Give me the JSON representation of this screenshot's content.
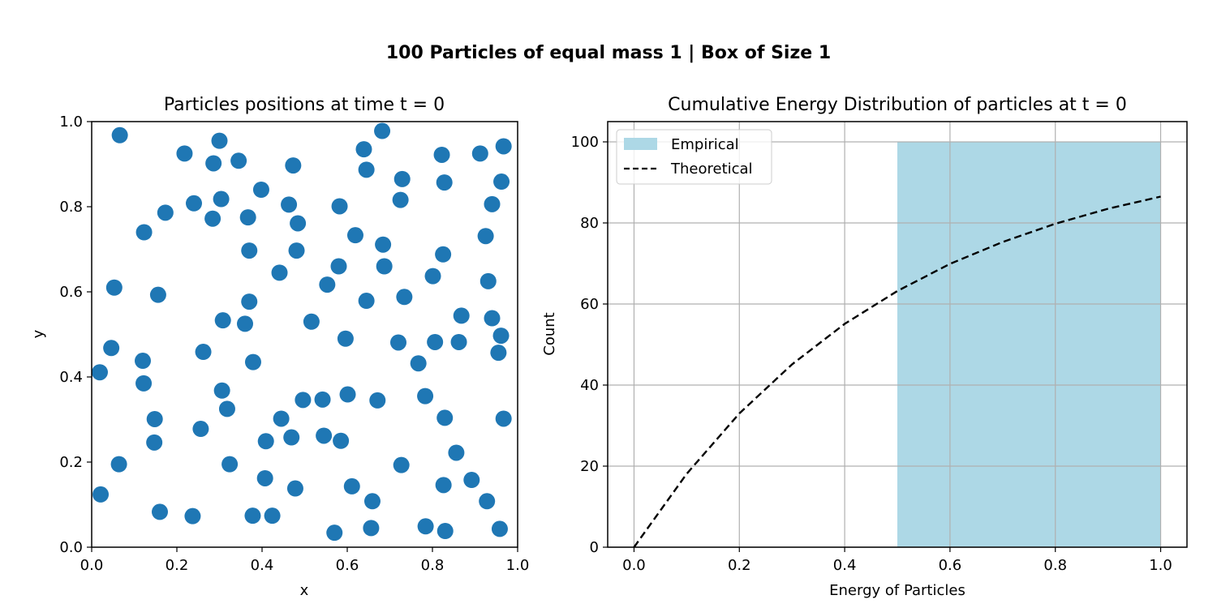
{
  "figure": {
    "suptitle": "100 Particles of equal mass 1 | Box of Size 1"
  },
  "colors": {
    "scatter": "#1f77b4",
    "bar": "#add8e6",
    "theory_line": "#000000",
    "grid": "#b0b0b0"
  },
  "chart_data": [
    {
      "type": "scatter",
      "title": "Particles positions at time t = 0",
      "xlabel": "x",
      "ylabel": "y",
      "xlim": [
        0,
        1
      ],
      "ylim": [
        0,
        1
      ],
      "xticks": [
        "0.0",
        "0.2",
        "0.4",
        "0.6",
        "0.8",
        "1.0"
      ],
      "yticks": [
        "0.0",
        "0.2",
        "0.4",
        "0.6",
        "0.8",
        "1.0"
      ],
      "grid": false,
      "points": [
        [
          0.066,
          0.968
        ],
        [
          0.218,
          0.925
        ],
        [
          0.3,
          0.955
        ],
        [
          0.286,
          0.902
        ],
        [
          0.345,
          0.908
        ],
        [
          0.473,
          0.897
        ],
        [
          0.639,
          0.935
        ],
        [
          0.682,
          0.978
        ],
        [
          0.645,
          0.887
        ],
        [
          0.729,
          0.865
        ],
        [
          0.822,
          0.922
        ],
        [
          0.912,
          0.925
        ],
        [
          0.967,
          0.942
        ],
        [
          0.828,
          0.857
        ],
        [
          0.962,
          0.859
        ],
        [
          0.398,
          0.84
        ],
        [
          0.304,
          0.818
        ],
        [
          0.24,
          0.808
        ],
        [
          0.173,
          0.786
        ],
        [
          0.284,
          0.772
        ],
        [
          0.367,
          0.775
        ],
        [
          0.463,
          0.805
        ],
        [
          0.484,
          0.761
        ],
        [
          0.582,
          0.801
        ],
        [
          0.725,
          0.816
        ],
        [
          0.94,
          0.806
        ],
        [
          0.123,
          0.74
        ],
        [
          0.37,
          0.697
        ],
        [
          0.481,
          0.697
        ],
        [
          0.619,
          0.733
        ],
        [
          0.684,
          0.711
        ],
        [
          0.925,
          0.731
        ],
        [
          0.825,
          0.688
        ],
        [
          0.441,
          0.645
        ],
        [
          0.58,
          0.66
        ],
        [
          0.687,
          0.66
        ],
        [
          0.053,
          0.61
        ],
        [
          0.156,
          0.593
        ],
        [
          0.553,
          0.617
        ],
        [
          0.801,
          0.637
        ],
        [
          0.931,
          0.625
        ],
        [
          0.37,
          0.577
        ],
        [
          0.645,
          0.579
        ],
        [
          0.734,
          0.588
        ],
        [
          0.868,
          0.544
        ],
        [
          0.94,
          0.538
        ],
        [
          0.308,
          0.533
        ],
        [
          0.36,
          0.525
        ],
        [
          0.516,
          0.53
        ],
        [
          0.596,
          0.49
        ],
        [
          0.961,
          0.497
        ],
        [
          0.72,
          0.481
        ],
        [
          0.806,
          0.482
        ],
        [
          0.862,
          0.482
        ],
        [
          0.046,
          0.468
        ],
        [
          0.262,
          0.459
        ],
        [
          0.12,
          0.438
        ],
        [
          0.379,
          0.435
        ],
        [
          0.767,
          0.432
        ],
        [
          0.955,
          0.457
        ],
        [
          0.019,
          0.411
        ],
        [
          0.122,
          0.385
        ],
        [
          0.306,
          0.368
        ],
        [
          0.601,
          0.359
        ],
        [
          0.496,
          0.346
        ],
        [
          0.542,
          0.347
        ],
        [
          0.671,
          0.345
        ],
        [
          0.783,
          0.355
        ],
        [
          0.318,
          0.325
        ],
        [
          0.148,
          0.301
        ],
        [
          0.445,
          0.302
        ],
        [
          0.829,
          0.304
        ],
        [
          0.967,
          0.302
        ],
        [
          0.256,
          0.278
        ],
        [
          0.147,
          0.246
        ],
        [
          0.409,
          0.249
        ],
        [
          0.469,
          0.258
        ],
        [
          0.545,
          0.262
        ],
        [
          0.585,
          0.25
        ],
        [
          0.856,
          0.222
        ],
        [
          0.064,
          0.195
        ],
        [
          0.324,
          0.195
        ],
        [
          0.727,
          0.193
        ],
        [
          0.407,
          0.162
        ],
        [
          0.478,
          0.138
        ],
        [
          0.611,
          0.143
        ],
        [
          0.826,
          0.146
        ],
        [
          0.892,
          0.158
        ],
        [
          0.021,
          0.124
        ],
        [
          0.659,
          0.108
        ],
        [
          0.928,
          0.108
        ],
        [
          0.16,
          0.083
        ],
        [
          0.237,
          0.073
        ],
        [
          0.378,
          0.074
        ],
        [
          0.424,
          0.074
        ],
        [
          0.57,
          0.034
        ],
        [
          0.656,
          0.045
        ],
        [
          0.784,
          0.049
        ],
        [
          0.83,
          0.038
        ],
        [
          0.958,
          0.043
        ]
      ]
    },
    {
      "type": "bar",
      "title": "Cumulative Energy Distribution of particles at t = 0",
      "xlabel": "Energy of Particles",
      "ylabel": "Count",
      "xlim": [
        -0.05,
        1.05
      ],
      "ylim": [
        0,
        105
      ],
      "xticks": [
        "0.0",
        "0.2",
        "0.4",
        "0.6",
        "0.8",
        "1.0"
      ],
      "yticks": [
        "0",
        "20",
        "40",
        "60",
        "80",
        "100"
      ],
      "grid": true,
      "legend_position": "upper-left",
      "series": [
        {
          "name": "Empirical",
          "type": "bar",
          "bins": [
            [
              0.5,
              1.0
            ]
          ],
          "values": [
            100
          ]
        },
        {
          "name": "Theoretical",
          "type": "line",
          "style": "dashed",
          "x": [
            0.0,
            0.1,
            0.2,
            0.3,
            0.4,
            0.5,
            0.6,
            0.7,
            0.8,
            0.9,
            1.0
          ],
          "y": [
            0,
            18.1,
            33.0,
            45.1,
            55.1,
            63.2,
            69.9,
            75.3,
            79.8,
            83.5,
            86.5
          ]
        }
      ]
    }
  ]
}
